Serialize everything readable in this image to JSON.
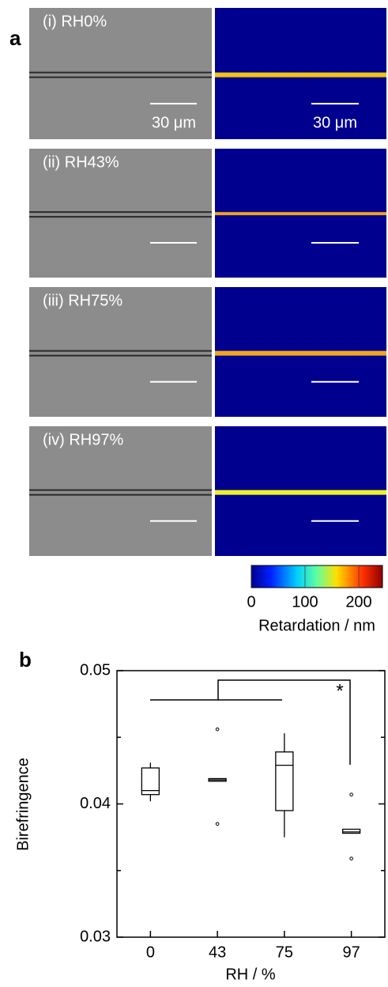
{
  "panel_a": {
    "label": "a",
    "rows": [
      {
        "label": "(i) RH0%",
        "stripe": "#f2c40f"
      },
      {
        "label": "(ii) RH43%",
        "stripe": "#f0a020"
      },
      {
        "label": "(iii) RH75%",
        "stripe": "#f2a61c"
      },
      {
        "label": "(iv) RH97%",
        "stripe": "#eef02a"
      }
    ],
    "scale_bar_text": "30 μm",
    "colorbar": {
      "label": "Retardation / nm",
      "lim": [
        0,
        200
      ],
      "ticks": [
        0,
        100,
        200
      ]
    }
  },
  "chart_data": {
    "type": "box",
    "label": "b",
    "xlabel": "RH / %",
    "ylabel": "Birefringence",
    "categories": [
      "0",
      "43",
      "75",
      "97"
    ],
    "boxes": [
      {
        "whisker_low": 0.0402,
        "q1": 0.0407,
        "median": 0.041,
        "q3": 0.0427,
        "whisker_high": 0.0431,
        "outliers": []
      },
      {
        "whisker_low": 0.0417,
        "q1": 0.0417,
        "median": 0.0418,
        "q3": 0.0419,
        "whisker_high": 0.0419,
        "outliers": [
          0.0456,
          0.0385
        ]
      },
      {
        "whisker_low": 0.0375,
        "q1": 0.0395,
        "median": 0.0429,
        "q3": 0.0439,
        "whisker_high": 0.0453,
        "outliers": []
      },
      {
        "whisker_low": 0.0378,
        "q1": 0.0378,
        "median": 0.0379,
        "q3": 0.0381,
        "whisker_high": 0.0381,
        "outliers": [
          0.0407,
          0.0359
        ]
      }
    ],
    "ylim": [
      0.03,
      0.05
    ],
    "yticks": [
      0.03,
      0.04,
      0.05
    ],
    "minor_yticks": [
      0.035,
      0.045
    ],
    "significance": "*"
  }
}
